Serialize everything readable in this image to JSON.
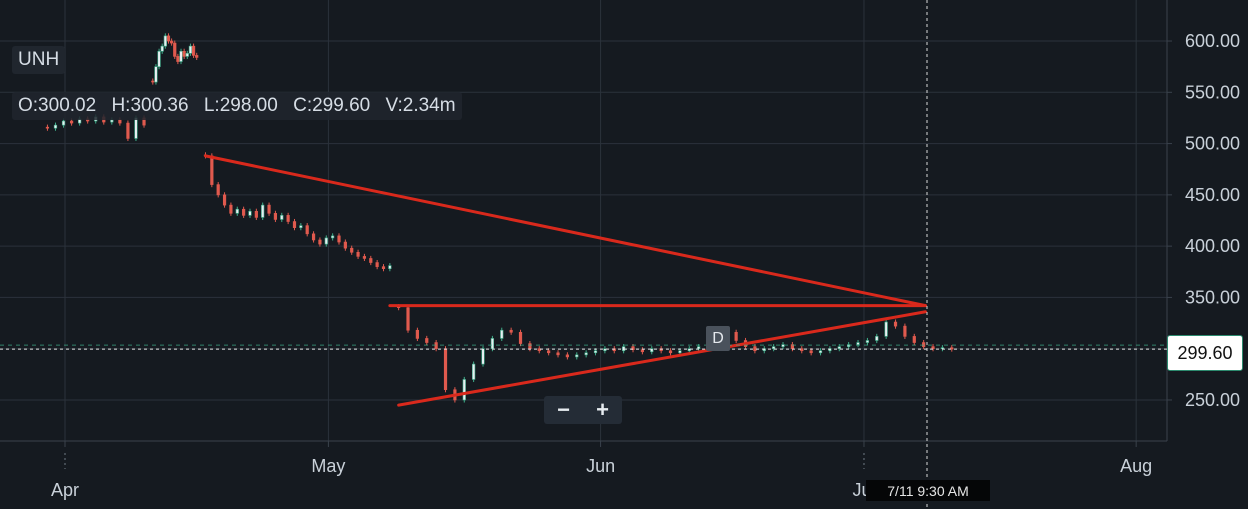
{
  "header": {
    "symbol": "UNH",
    "open": "O:300.02",
    "high": "H:300.36",
    "low": "L:298.00",
    "close": "C:299.60",
    "volume": "V:2.34m"
  },
  "controls": {
    "zoom_out_label": "−",
    "zoom_in_label": "+",
    "marker_label": "D"
  },
  "last_price_label": "299.60",
  "crosshair_label": "7/11 9:30 AM",
  "colors": {
    "background": "#151a20",
    "grid": "#2b323b",
    "axis_text": "#c9d1d9",
    "up": "#3fae8a",
    "down": "#e05a4e",
    "trendline": "#d9291c"
  },
  "chart_data": {
    "type": "candlestick",
    "title": "",
    "xlabel": "",
    "ylabel": "",
    "ylim": [
      210,
      640
    ],
    "y_ticks": [
      250,
      300,
      350,
      400,
      450,
      500,
      550,
      600
    ],
    "y_tick_labels": [
      "250.00",
      "300.00",
      "350.00",
      "400.00",
      "450.00",
      "500.00",
      "550.00",
      "600.00"
    ],
    "x_ticks": [
      "Apr",
      "May",
      "Jun",
      "Jul",
      "Aug"
    ],
    "last_price": 299.6,
    "segments": [
      {
        "name": "",
        "dates": [
          "03-30",
          "04-10"
        ],
        "prices": [
          515,
          518,
          522,
          520,
          524,
          522,
          526,
          521,
          523,
          520,
          505,
          525,
          518
        ]
      },
      {
        "name": "",
        "dates": [
          "04-11",
          "04-16"
        ],
        "prices": [
          560,
          575,
          590,
          595,
          605,
          600,
          598,
          585,
          580,
          590,
          585,
          588,
          595,
          586,
          584
        ]
      },
      {
        "name": "",
        "dates": [
          "04-17",
          "05-08"
        ],
        "prices": [
          488,
          460,
          450,
          440,
          432,
          436,
          430,
          434,
          428,
          440,
          432,
          426,
          430,
          424,
          418,
          420,
          412,
          406,
          402,
          408,
          410,
          404,
          398,
          394,
          390,
          388,
          384,
          380,
          378,
          381
        ]
      },
      {
        "name": "",
        "dates": [
          "05-09",
          "07-11"
        ],
        "prices": [
          340,
          318,
          310,
          306,
          300,
          260,
          250,
          270,
          285,
          300,
          310,
          318,
          316,
          305,
          300,
          298,
          296,
          294,
          292,
          294,
          296,
          298,
          300,
          298,
          302,
          299,
          297,
          300,
          298,
          296,
          298,
          300,
          302,
          304,
          312,
          316,
          308,
          302,
          298,
          300,
          302,
          304,
          300,
          298,
          296,
          298,
          300,
          302,
          304,
          306,
          308,
          312,
          326,
          322,
          312,
          306,
          302,
          300,
          301,
          299.6
        ]
      }
    ],
    "annotations": [
      {
        "type": "trendline",
        "from": [
          "04-17",
          488
        ],
        "to": [
          "07-08",
          342
        ]
      },
      {
        "type": "trendline",
        "from": [
          "05-08",
          342
        ],
        "to": [
          "07-08",
          342
        ]
      },
      {
        "type": "trendline",
        "from": [
          "05-09",
          245
        ],
        "to": [
          "07-08",
          336
        ]
      }
    ]
  }
}
